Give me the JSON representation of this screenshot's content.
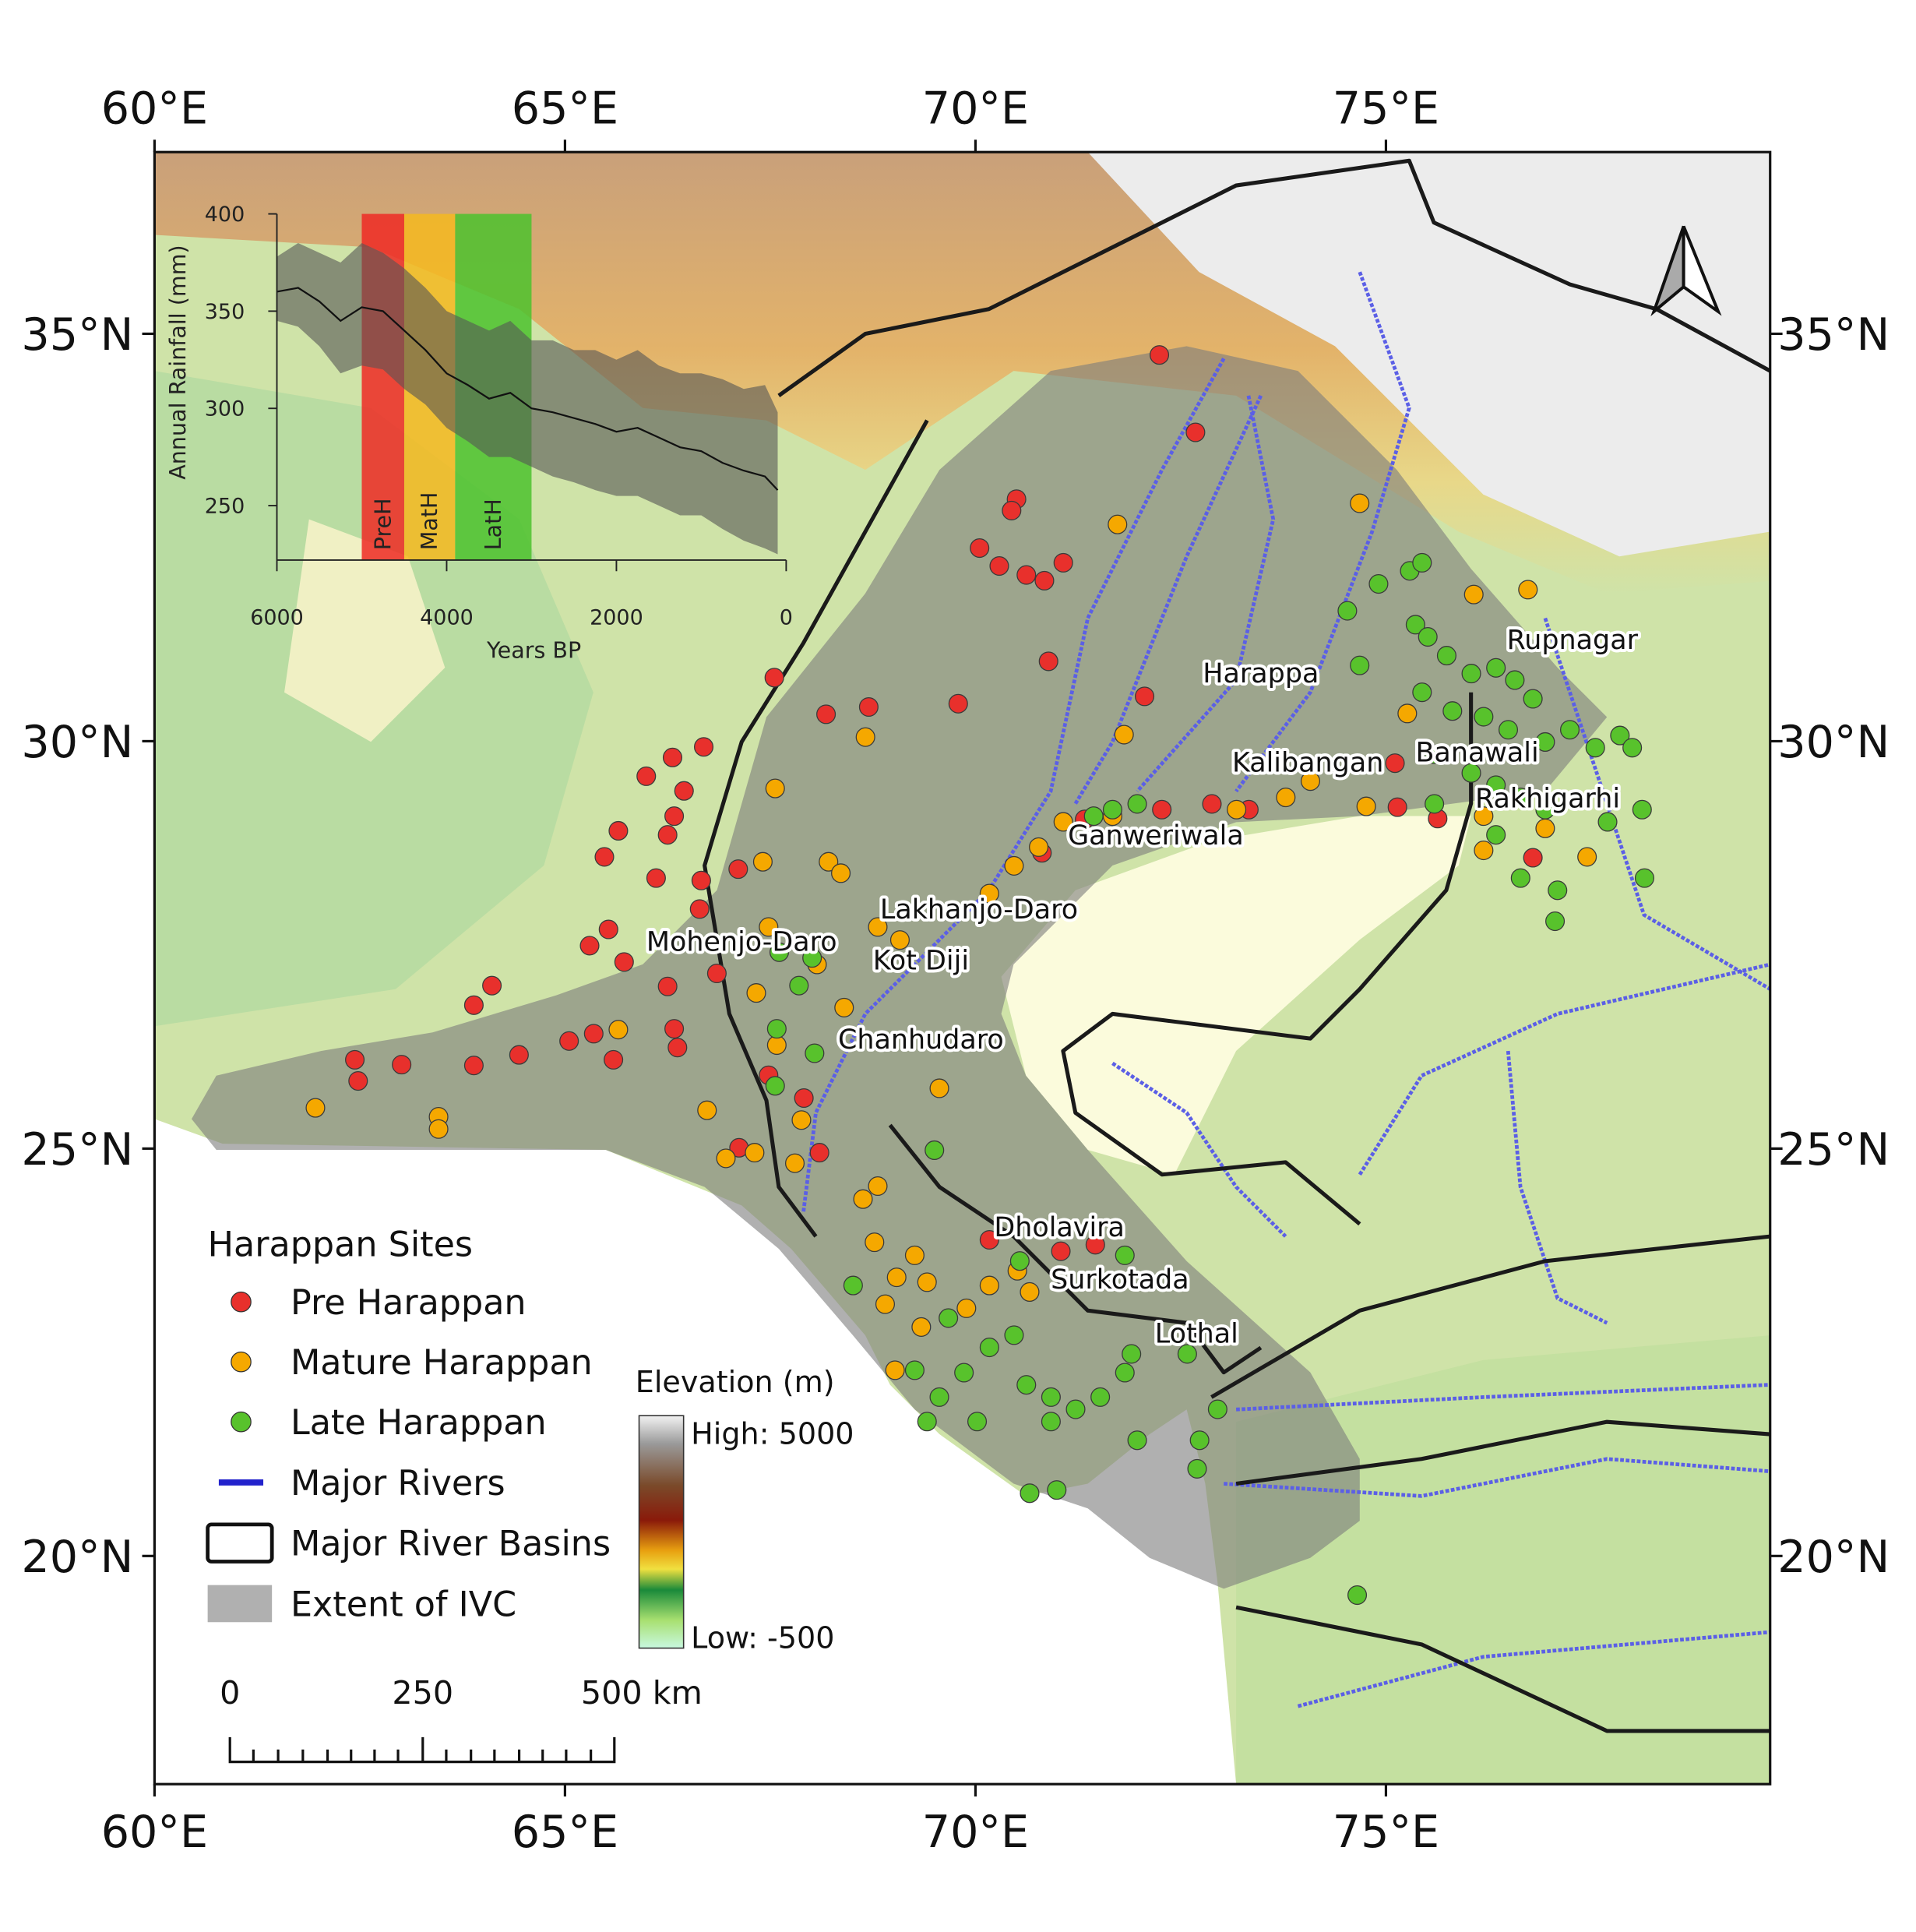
{
  "map": {
    "xlim": [
      60,
      79.68
    ],
    "ylim": [
      17.2,
      37.23
    ],
    "xticks": [
      {
        "value": 60,
        "label": "60°E"
      },
      {
        "value": 65,
        "label": "65°E"
      },
      {
        "value": 70,
        "label": "70°E"
      },
      {
        "value": 75,
        "label": "75°E"
      }
    ],
    "yticks": [
      {
        "value": 20,
        "label": "20°N"
      },
      {
        "value": 25,
        "label": "25°N"
      },
      {
        "value": 30,
        "label": "30°N"
      },
      {
        "value": 35,
        "label": "35°N"
      }
    ],
    "sites": {
      "title": "Harappan Sites",
      "groups": [
        {
          "name": "Pre Harappan",
          "color": "#e8302c",
          "lon": [
            72.24,
            72.68,
            70.5,
            70.44,
            70.05,
            70.29,
            71.07,
            70.62,
            70.84,
            70.89,
            72.06,
            69.79,
            67.55,
            68.18,
            68.7,
            66.31,
            66.69,
            65.99,
            66.45,
            66.33,
            66.25,
            65.65,
            65.48,
            66.11,
            66.66,
            67.11,
            66.64,
            65.53,
            65.3,
            65.72,
            66.25,
            66.85,
            64.11,
            63.89,
            62.44,
            62.48,
            63.01,
            63.89,
            64.44,
            65.05,
            65.35,
            66.33,
            66.37,
            65.59,
            67.48,
            67.91,
            68.1,
            67.12,
            72.27,
            72.88,
            73.33,
            75.14,
            75.63,
            76.79,
            71.33,
            70.81,
            75.11,
            70.17,
            71.04,
            71.46
          ],
          "lat": [
            34.74,
            33.79,
            32.97,
            32.83,
            32.37,
            32.15,
            32.19,
            32.04,
            31.97,
            30.98,
            30.55,
            30.46,
            30.78,
            30.33,
            30.42,
            29.8,
            29.93,
            29.57,
            29.39,
            29.08,
            28.85,
            28.9,
            28.58,
            28.32,
            28.29,
            28.43,
            27.94,
            27.69,
            27.49,
            27.29,
            26.99,
            27.15,
            27.0,
            26.76,
            26.09,
            25.83,
            26.03,
            26.02,
            26.15,
            26.32,
            26.41,
            26.47,
            26.24,
            26.09,
            25.9,
            25.62,
            24.95,
            25.01,
            29.16,
            29.23,
            29.16,
            29.19,
            29.05,
            28.57,
            29.04,
            28.63,
            29.73,
            23.88,
            23.74,
            23.82
          ]
        },
        {
          "name": "Mature Harappan",
          "color": "#f5a800",
          "lon": [
            74.68,
            71.73,
            76.07,
            76.73,
            75.26,
            71.81,
            68.66,
            67.56,
            67.41,
            68.21,
            68.36,
            67.48,
            67.33,
            67.58,
            68.07,
            68.81,
            69.08,
            68.4,
            70.17,
            70.47,
            70.77,
            71.07,
            71.67,
            73.18,
            73.78,
            74.08,
            74.76,
            76.19,
            76.94,
            77.45,
            76.19,
            65.65,
            61.96,
            63.46,
            63.46,
            66.73,
            67.88,
            66.96,
            67.31,
            67.8,
            69.56,
            68.63,
            68.81,
            68.77,
            69.04,
            69.26,
            69.41,
            68.9,
            69.34,
            69.89,
            70.17,
            70.51,
            70.66,
            69.02
          ],
          "lat": [
            32.92,
            32.66,
            31.8,
            31.86,
            30.34,
            30.08,
            30.05,
            29.42,
            28.52,
            28.52,
            28.38,
            27.72,
            26.91,
            26.27,
            27.26,
            27.72,
            27.56,
            26.73,
            28.13,
            28.47,
            28.7,
            29.01,
            29.08,
            29.16,
            29.31,
            29.51,
            29.2,
            29.08,
            28.93,
            28.58,
            28.66,
            26.46,
            25.5,
            25.39,
            25.24,
            25.47,
            25.35,
            24.88,
            24.95,
            24.82,
            25.74,
            24.38,
            24.54,
            23.85,
            23.42,
            23.69,
            23.36,
            23.09,
            22.81,
            23.04,
            23.32,
            23.5,
            23.24,
            22.28
          ]
        },
        {
          "name": "Late Harappan",
          "color": "#58c22c",
          "lon": [
            74.53,
            74.91,
            75.29,
            75.44,
            75.36,
            75.51,
            75.74,
            76.04,
            76.34,
            76.57,
            76.79,
            75.44,
            75.81,
            76.19,
            76.49,
            76.94,
            77.24,
            77.55,
            77.85,
            78.0,
            75.59,
            76.04,
            76.34,
            76.64,
            76.94,
            75.59,
            76.34,
            76.64,
            77.09,
            77.06,
            77.7,
            78.15,
            78.12,
            74.68,
            71.67,
            71.97,
            71.44,
            67.61,
            68.01,
            67.85,
            67.58,
            67.56,
            68.04,
            69.5,
            68.51,
            69.67,
            70.54,
            71.82,
            69.26,
            69.56,
            69.86,
            70.17,
            70.47,
            70.62,
            70.92,
            71.22,
            71.52,
            71.82,
            71.9,
            70.92,
            70.66,
            70.99,
            71.97,
            72.58,
            72.73,
            72.95,
            72.7,
            74.65,
            69.41,
            70.02
          ],
          "lat": [
            31.6,
            31.93,
            32.09,
            32.19,
            31.43,
            31.28,
            31.05,
            30.83,
            30.9,
            30.75,
            30.52,
            30.6,
            30.37,
            30.3,
            30.14,
            29.99,
            30.14,
            29.92,
            30.07,
            29.92,
            29.84,
            29.61,
            29.46,
            29.31,
            29.16,
            29.23,
            28.85,
            28.32,
            28.17,
            27.79,
            29.01,
            28.32,
            29.16,
            30.93,
            29.16,
            29.23,
            29.08,
            27.41,
            27.34,
            27.0,
            26.47,
            25.77,
            26.17,
            24.98,
            23.32,
            22.92,
            23.62,
            23.69,
            22.28,
            21.95,
            22.25,
            22.56,
            22.71,
            22.1,
            21.95,
            21.8,
            21.95,
            22.25,
            22.48,
            21.65,
            20.77,
            20.81,
            21.42,
            22.48,
            21.42,
            21.8,
            21.07,
            19.52,
            21.65,
            21.65
          ]
        }
      ]
    },
    "site_labels": [
      "Harappa",
      "Rupnagar",
      "Kalibangan",
      "Banawali",
      "Rakhigarhi",
      "Ganweriwala",
      "Lakhanjo-Daro",
      "Mohenjo-Daro",
      "Kot Diji",
      "Chanhudaro",
      "Dholavira",
      "Surkotada",
      "Lothal"
    ],
    "legend": {
      "rivers": "Major Rivers",
      "basins": "Major River Basins",
      "extent": "Extent of IVC"
    },
    "elevation": {
      "title": "Elevation (m)",
      "high": "High: 5000",
      "low": "Low: -500"
    },
    "scale_bar": [
      "0",
      "250",
      "500 km"
    ]
  },
  "chart_data": {
    "type": "line",
    "y_label": "Annual Rainfall (mm)",
    "x_label": "Years BP",
    "xlim": [
      6000,
      0
    ],
    "ylim": [
      222,
      400
    ],
    "xticks": [
      6000,
      4000,
      2000,
      0
    ],
    "yticks": [
      250,
      300,
      350,
      400
    ],
    "periods": [
      {
        "label": "PreH",
        "start": 5000,
        "end": 4500,
        "color": "#ee2a24"
      },
      {
        "label": "MatH",
        "start": 4500,
        "end": 3900,
        "color": "#f5b820"
      },
      {
        "label": "LatH",
        "start": 3900,
        "end": 3000,
        "color": "#4cc22e"
      }
    ],
    "x": [
      6000,
      5750,
      5500,
      5250,
      5000,
      4750,
      4500,
      4250,
      4000,
      3750,
      3500,
      3250,
      3000,
      2750,
      2500,
      2250,
      2000,
      1750,
      1500,
      1250,
      1000,
      750,
      500,
      250,
      100
    ],
    "values": [
      360,
      362,
      355,
      345,
      352,
      350,
      340,
      330,
      318,
      312,
      305,
      308,
      300,
      298,
      295,
      292,
      288,
      290,
      285,
      280,
      278,
      272,
      268,
      265,
      258
    ],
    "upper": [
      378,
      385,
      380,
      375,
      385,
      380,
      372,
      362,
      350,
      345,
      340,
      345,
      335,
      335,
      330,
      330,
      325,
      330,
      322,
      318,
      318,
      315,
      310,
      312,
      298
    ],
    "lower": [
      345,
      342,
      332,
      318,
      322,
      320,
      310,
      302,
      290,
      283,
      275,
      275,
      270,
      265,
      262,
      258,
      255,
      255,
      250,
      245,
      245,
      238,
      232,
      228,
      225
    ],
    "color": "#111111",
    "band_color": "#555555"
  }
}
